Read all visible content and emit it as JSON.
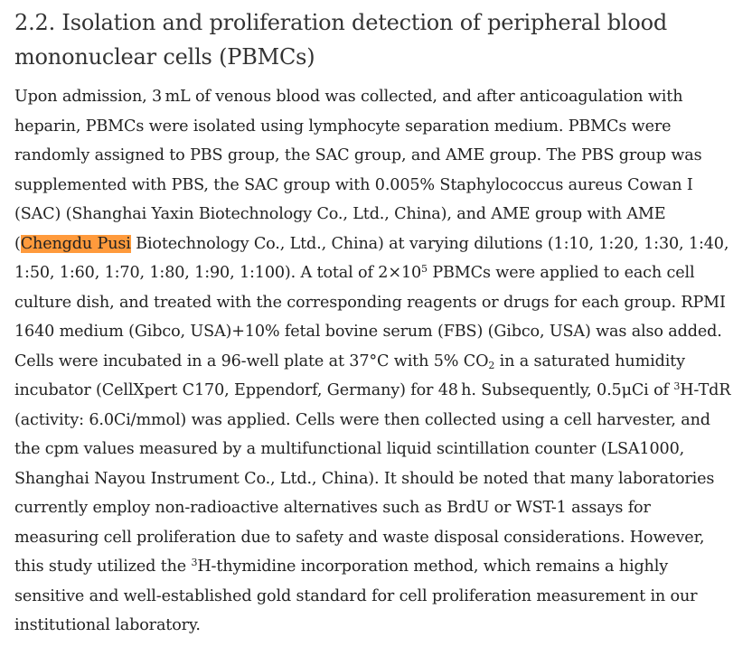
{
  "heading": {
    "lines": [
      "2.2. Isolation and proliferation detection of peripheral blood",
      "mononuclear cells (PBMCs)"
    ]
  },
  "highlight_color": "#ff9a3c",
  "paragraph": {
    "lines": [
      [
        {
          "t": "Upon admission, 3 mL of venous blood was collected, and after anticoagulation with"
        }
      ],
      [
        {
          "t": "heparin, PBMCs were isolated using lymphocyte separation medium. PBMCs were"
        }
      ],
      [
        {
          "t": "randomly assigned to PBS group, the SAC group, and AME group. The PBS group was"
        }
      ],
      [
        {
          "t": "supplemented with PBS, the SAC group with 0.005% Staphylococcus aureus Cowan I"
        }
      ],
      [
        {
          "t": "(SAC) (Shanghai Yaxin Biotechnology Co., Ltd., China), and AME group with AME"
        }
      ],
      [
        {
          "t": "("
        },
        {
          "t": "Chengdu Pusi",
          "style": "mark"
        },
        {
          "t": " Biotechnology Co., Ltd., China) at varying dilutions (1:10, 1:20, 1:30, 1:40,"
        }
      ],
      [
        {
          "t": "1:50, 1:60, 1:70, 1:80, 1:90, 1:100). A total of 2×10"
        },
        {
          "t": "5",
          "style": "sup"
        },
        {
          "t": " PBMCs were applied to each cell"
        }
      ],
      [
        {
          "t": "culture dish, and treated with the corresponding reagents or drugs for each group. RPMI"
        }
      ],
      [
        {
          "t": "1640 medium (Gibco, USA)+10% fetal bovine serum (FBS) (Gibco, USA) was also added."
        }
      ],
      [
        {
          "t": "Cells were incubated in a 96-well plate at 37°C with 5% CO"
        },
        {
          "t": "2",
          "style": "sub"
        },
        {
          "t": " in a saturated humidity"
        }
      ],
      [
        {
          "t": "incubator (CellXpert C170, Eppendorf, Germany) for 48 h. Subsequently, 0.5μCi of "
        },
        {
          "t": "3",
          "style": "sup"
        },
        {
          "t": "H-TdR"
        }
      ],
      [
        {
          "t": "(activity: 6.0Ci/mmol) was applied. Cells were then collected using a cell harvester, and"
        }
      ],
      [
        {
          "t": "the cpm values measured by a multifunctional liquid scintillation counter (LSA1000,"
        }
      ],
      [
        {
          "t": "Shanghai Nayou Instrument Co., Ltd., China). It should be noted that many laboratories"
        }
      ],
      [
        {
          "t": "currently employ non-radioactive alternatives such as BrdU or WST-1 assays for"
        }
      ],
      [
        {
          "t": "measuring cell proliferation due to safety and waste disposal considerations. However,"
        }
      ],
      [
        {
          "t": "this study utilized the "
        },
        {
          "t": "3",
          "style": "sup"
        },
        {
          "t": "H-thymidine incorporation method, which remains a highly"
        }
      ],
      [
        {
          "t": "sensitive and well-established gold standard for cell proliferation measurement in our"
        }
      ],
      [
        {
          "t": "institutional laboratory."
        }
      ]
    ]
  }
}
